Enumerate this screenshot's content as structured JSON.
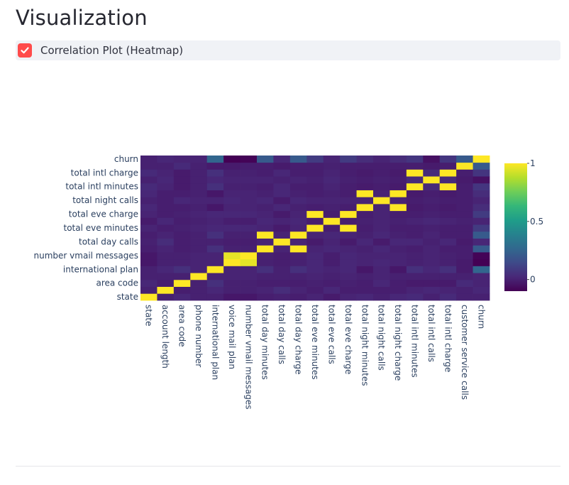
{
  "header": {
    "title": "Visualization"
  },
  "checkbox": {
    "label": "Correlation Plot (Heatmap)",
    "checked": true,
    "accent": "#ff4b4b"
  },
  "chart_data": {
    "type": "heatmap",
    "colorscale": "viridis",
    "zrange": [
      -0.1,
      1
    ],
    "colorbar_ticks": [
      {
        "value": 1,
        "label": "1"
      },
      {
        "value": 0.5,
        "label": "0.5"
      },
      {
        "value": 0,
        "label": "0"
      }
    ],
    "x": [
      "state",
      "account length",
      "area code",
      "phone number",
      "international plan",
      "voice mail plan",
      "number vmail messages",
      "total day minutes",
      "total day calls",
      "total day charge",
      "total eve minutes",
      "total eve calls",
      "total eve charge",
      "total night minutes",
      "total night calls",
      "total night charge",
      "total intl minutes",
      "total intl calls",
      "total intl charge",
      "customer service calls",
      "churn"
    ],
    "y": [
      "state",
      "account length",
      "area code",
      "phone number",
      "international plan",
      "voice mail plan",
      "number vmail messages",
      "total day minutes",
      "total day calls",
      "total day charge",
      "total eve minutes",
      "total eve calls",
      "total eve charge",
      "total night minutes",
      "total night calls",
      "total night charge",
      "total intl minutes",
      "total intl calls",
      "total intl charge",
      "customer service calls",
      "churn"
    ],
    "y_tick_labels_shown": [
      "state",
      "area code",
      "international plan",
      "number vmail messages",
      "total day calls",
      "total eve minutes",
      "total eve charge",
      "total night calls",
      "total intl minutes",
      "total intl charge",
      "churn"
    ],
    "z": [
      [
        1,
        0.0,
        0.02,
        0.0,
        -0.0,
        -0.03,
        -0.03,
        -0.01,
        -0.0,
        -0.01,
        0.01,
        -0.02,
        0.01,
        0.02,
        0.0,
        0.02,
        0.03,
        0.0,
        0.03,
        0.0,
        0.0
      ],
      [
        0.0,
        1,
        -0.01,
        0.0,
        0.02,
        0.0,
        -0.0,
        0.01,
        0.04,
        0.01,
        -0.01,
        0.02,
        -0.01,
        -0.01,
        -0.01,
        -0.01,
        0.01,
        0.02,
        0.01,
        -0.0,
        0.02
      ],
      [
        0.02,
        -0.01,
        1,
        0.0,
        0.05,
        -0.0,
        -0.0,
        -0.01,
        -0.01,
        -0.01,
        0.0,
        -0.01,
        0.0,
        -0.01,
        0.02,
        -0.01,
        -0.02,
        -0.02,
        -0.02,
        0.03,
        0.01
      ],
      [
        0.0,
        0.0,
        0.0,
        1,
        0.01,
        0.01,
        0.01,
        0.0,
        0.0,
        0.0,
        0.01,
        0.0,
        0.01,
        0.0,
        0.01,
        0.0,
        0.0,
        0.0,
        0.0,
        0.0,
        0.01
      ],
      [
        -0.0,
        0.02,
        0.05,
        0.01,
        1,
        0.01,
        0.01,
        0.05,
        0.0,
        0.05,
        0.02,
        0.01,
        0.02,
        -0.03,
        0.01,
        -0.03,
        0.05,
        0.02,
        0.05,
        -0.02,
        0.26
      ],
      [
        -0.03,
        0.0,
        -0.0,
        0.01,
        0.01,
        1,
        0.96,
        -0.0,
        -0.01,
        -0.0,
        0.02,
        -0.01,
        0.02,
        0.01,
        0.02,
        0.01,
        -0.0,
        0.01,
        -0.0,
        -0.02,
        -0.1
      ],
      [
        -0.03,
        -0.0,
        -0.0,
        0.01,
        0.01,
        0.96,
        1,
        0.0,
        -0.01,
        0.0,
        0.02,
        -0.01,
        0.02,
        0.01,
        0.01,
        0.01,
        0.0,
        0.01,
        0.0,
        -0.01,
        -0.09
      ],
      [
        -0.01,
        0.01,
        -0.01,
        0.0,
        0.05,
        -0.0,
        0.0,
        1,
        0.01,
        1,
        0.01,
        0.02,
        0.01,
        0.0,
        0.02,
        0.0,
        -0.01,
        0.01,
        -0.01,
        -0.01,
        0.21
      ],
      [
        -0.0,
        0.04,
        -0.01,
        0.0,
        0.0,
        -0.01,
        -0.01,
        0.01,
        1,
        0.01,
        -0.02,
        0.01,
        -0.02,
        0.02,
        -0.02,
        0.02,
        0.02,
        0.0,
        0.02,
        -0.02,
        0.02
      ],
      [
        -0.01,
        0.01,
        -0.01,
        0.0,
        0.05,
        -0.0,
        0.0,
        1,
        0.01,
        1,
        0.01,
        0.02,
        0.01,
        0.0,
        0.02,
        0.0,
        -0.01,
        0.01,
        -0.01,
        -0.01,
        0.21
      ],
      [
        0.01,
        -0.01,
        0.0,
        0.01,
        0.02,
        0.02,
        0.02,
        0.01,
        -0.02,
        0.01,
        1,
        -0.01,
        1,
        -0.01,
        0.01,
        -0.01,
        -0.01,
        0.0,
        -0.01,
        -0.01,
        0.09
      ],
      [
        -0.02,
        0.02,
        -0.01,
        0.0,
        0.01,
        -0.01,
        -0.01,
        0.02,
        0.01,
        0.02,
        -0.01,
        1,
        -0.01,
        -0.0,
        0.01,
        -0.0,
        0.01,
        0.02,
        0.01,
        0.0,
        0.01
      ],
      [
        0.01,
        -0.01,
        0.0,
        0.01,
        0.02,
        0.02,
        0.02,
        0.01,
        -0.02,
        0.01,
        1,
        -0.01,
        1,
        -0.01,
        0.01,
        -0.01,
        -0.01,
        0.0,
        -0.01,
        -0.01,
        0.09
      ],
      [
        0.02,
        -0.01,
        -0.01,
        0.0,
        -0.03,
        0.01,
        0.01,
        0.0,
        0.02,
        0.0,
        -0.01,
        -0.0,
        -0.01,
        1,
        0.01,
        1,
        -0.02,
        -0.01,
        -0.02,
        -0.01,
        0.04
      ],
      [
        0.0,
        -0.01,
        0.02,
        0.01,
        0.01,
        0.02,
        0.01,
        0.02,
        -0.02,
        0.02,
        0.01,
        0.01,
        0.01,
        0.01,
        1,
        0.01,
        -0.01,
        0.0,
        -0.01,
        -0.01,
        0.01
      ],
      [
        0.02,
        -0.01,
        -0.01,
        0.0,
        -0.03,
        0.01,
        0.01,
        0.0,
        0.02,
        0.0,
        -0.01,
        -0.0,
        -0.01,
        1,
        0.01,
        1,
        -0.02,
        -0.01,
        -0.02,
        -0.01,
        0.04
      ],
      [
        0.03,
        0.01,
        -0.02,
        0.0,
        0.05,
        -0.0,
        0.0,
        -0.01,
        0.02,
        -0.01,
        -0.01,
        0.01,
        -0.01,
        -0.02,
        -0.01,
        -0.02,
        1,
        0.03,
        1,
        -0.01,
        0.07
      ],
      [
        0.0,
        0.02,
        -0.02,
        0.0,
        0.02,
        0.01,
        0.01,
        0.01,
        0.0,
        0.01,
        0.0,
        0.02,
        0.0,
        -0.01,
        0.0,
        -0.01,
        0.03,
        1,
        0.03,
        -0.02,
        -0.05
      ],
      [
        0.03,
        0.01,
        -0.02,
        0.0,
        0.05,
        -0.0,
        0.0,
        -0.01,
        0.02,
        -0.01,
        -0.01,
        0.01,
        -0.01,
        -0.02,
        -0.01,
        -0.02,
        1,
        0.03,
        1,
        -0.01,
        0.07
      ],
      [
        0.0,
        -0.0,
        0.03,
        0.0,
        -0.02,
        -0.02,
        -0.01,
        -0.01,
        -0.02,
        -0.01,
        -0.01,
        0.0,
        -0.01,
        -0.01,
        -0.01,
        -0.01,
        -0.01,
        -0.02,
        -0.01,
        1,
        0.21
      ],
      [
        0.0,
        0.02,
        0.01,
        0.01,
        0.26,
        -0.1,
        -0.09,
        0.21,
        0.02,
        0.21,
        0.09,
        0.01,
        0.09,
        0.04,
        0.01,
        0.04,
        0.07,
        -0.05,
        0.07,
        0.21,
        1
      ]
    ]
  }
}
